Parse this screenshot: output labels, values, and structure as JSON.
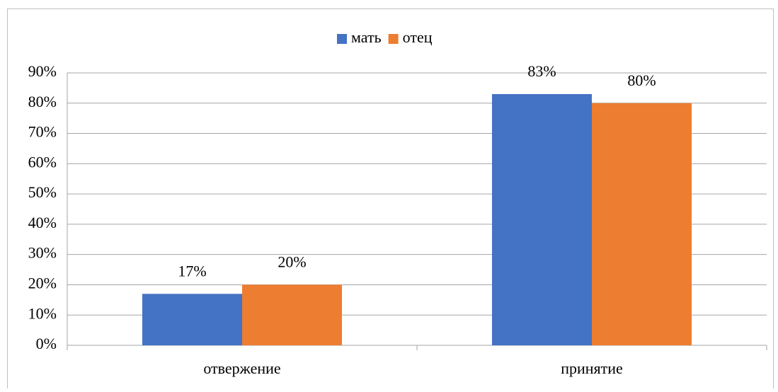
{
  "chart_data": {
    "type": "bar",
    "categories": [
      "отвержение",
      "принятие"
    ],
    "series": [
      {
        "name": "мать",
        "color": "#4472c4",
        "values": [
          17,
          83
        ],
        "value_labels": [
          "17%",
          "83%"
        ]
      },
      {
        "name": "отец",
        "color": "#ed7d31",
        "values": [
          20,
          80
        ],
        "value_labels": [
          "20%",
          "80%"
        ]
      }
    ],
    "ylim": [
      0,
      90
    ],
    "yticks": [
      {
        "value": 0,
        "label": "0%"
      },
      {
        "value": 10,
        "label": "10%"
      },
      {
        "value": 20,
        "label": "20%"
      },
      {
        "value": 30,
        "label": "30%"
      },
      {
        "value": 40,
        "label": "40%"
      },
      {
        "value": 50,
        "label": "50%"
      },
      {
        "value": 60,
        "label": "60%"
      },
      {
        "value": 70,
        "label": "70%"
      },
      {
        "value": 80,
        "label": "80%"
      },
      {
        "value": 90,
        "label": "90%"
      }
    ],
    "grid": true,
    "legend": "top"
  }
}
